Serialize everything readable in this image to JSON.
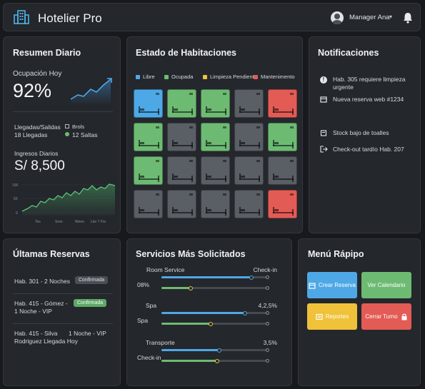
{
  "app": {
    "title": "Hotelier Pro",
    "user": "Manager Ana"
  },
  "summary": {
    "title": "Resumen Diario",
    "occupancy_label": "Ocupación Hoy",
    "occupancy_value": "92%",
    "arrivals_label": "Llegadas/Salidas",
    "arrivals_value": "18 Llegadas",
    "misc_label": "Brols",
    "departures_value": "12 Saltas",
    "income_label": "Ingresos Diarios",
    "income_value": "S/ 8,500",
    "income_chart": {
      "y_ticks": [
        "100",
        "50",
        "0"
      ],
      "x_ticks": [
        "Tes",
        "Sree",
        "Weee",
        "Lke 7 Fre"
      ]
    }
  },
  "rooms": {
    "title": "Estado de Habitaciones",
    "legend": [
      {
        "label": "Libre",
        "color": "#4ea8e6"
      },
      {
        "label": "Ocupada",
        "color": "#6dbb73"
      },
      {
        "label": "Limpieza Pendiente",
        "color": "#f0c23a"
      },
      {
        "label": "Mantenimento",
        "color": "#e35b55"
      }
    ],
    "grid": [
      [
        "blue",
        "green",
        "green",
        "gray",
        "red"
      ],
      [
        "green",
        "gray",
        "green",
        "gray",
        "green"
      ],
      [
        "green",
        "gray",
        "gray",
        "gray",
        "gray"
      ],
      [
        "gray",
        "gray",
        "gray",
        "gray",
        "red"
      ]
    ],
    "colors": {
      "blue": "#4ea8e6",
      "green": "#6dbb73",
      "gray": "#5a5e65",
      "red": "#e35b55"
    }
  },
  "notifications": {
    "title": "Notificaciones",
    "items": [
      {
        "icon": "alert-icon",
        "text": "Hab. 305 requiere limpieza urgente"
      },
      {
        "icon": "calendar-icon",
        "text": "Nueva reserva web #1234"
      },
      {
        "icon": "box-icon",
        "text": "Stock bajo de toalles"
      },
      {
        "icon": "logout-icon",
        "text": "Check-out tardío Hab. 207"
      }
    ]
  },
  "reservations": {
    "title": "Últamas Reservas",
    "items": [
      {
        "text": "Hab. 301 - 2 Noches",
        "badge": "Confirmada"
      },
      {
        "text": "Hab. 415 - Gómez -",
        "text2": "1 Noche - VIP",
        "badge": "Confirmada"
      },
      {
        "text": "Hab. 415 - Silva",
        "text_right": "1 Noche - VIP",
        "text2": "Rodriguez Llegada Hoy"
      }
    ]
  },
  "services": {
    "title": "Servicios Más Solicitados",
    "items": [
      {
        "name": "Room Service",
        "right": "Check-in",
        "side": "08%",
        "blue": 0.84,
        "green": 0.27
      },
      {
        "name": "Spa",
        "right": "4,2,5%",
        "side": "Spa",
        "blue": 0.78,
        "green": 0.46
      },
      {
        "name": "Transporte",
        "right": "3,5%",
        "side": "Check-in",
        "blue": 0.54,
        "green": 0.52
      }
    ]
  },
  "quick_menu": {
    "title": "Menú Rápipo",
    "buttons": [
      {
        "label": "Crear Reserva",
        "color": "#4ea8e6",
        "icon": "calendar-icon"
      },
      {
        "label": "Ver Calendario",
        "color": "#6dbb73"
      },
      {
        "label": "Reportes",
        "color": "#f0c23a",
        "icon": "report-icon"
      },
      {
        "label": "Cerrar Turno",
        "color": "#e35b55",
        "icon": "lock-icon"
      }
    ]
  }
}
